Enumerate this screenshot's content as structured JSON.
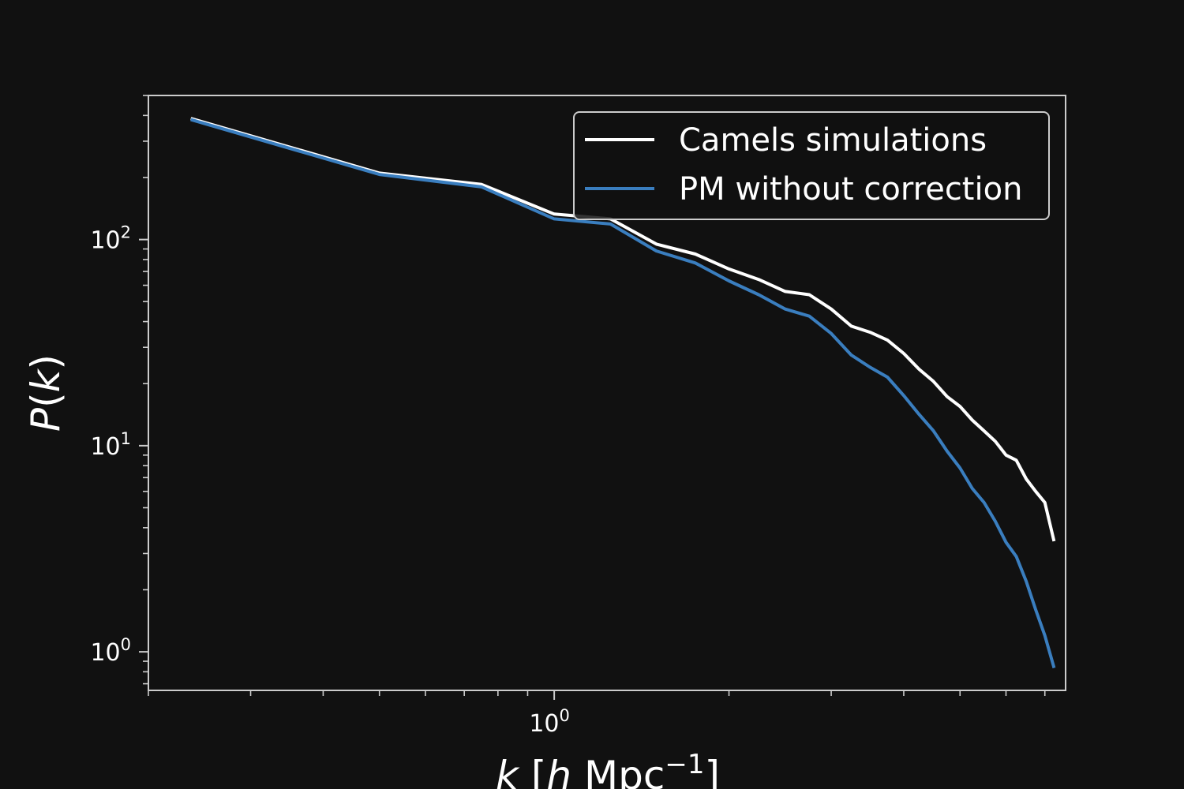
{
  "chart_data": {
    "type": "line",
    "xscale": "log",
    "yscale": "log",
    "xlim": [
      0.2,
      7.6
    ],
    "ylim": [
      0.65,
      500
    ],
    "x_major_ticks": [
      {
        "value": 1,
        "base": "10",
        "exp": "0"
      }
    ],
    "y_major_ticks": [
      {
        "value": 1,
        "base": "10",
        "exp": "0"
      },
      {
        "value": 10,
        "base": "10",
        "exp": "1"
      },
      {
        "value": 100,
        "base": "10",
        "exp": "2"
      }
    ],
    "xlabel": {
      "italic": "k",
      "open": " [",
      "italic2": "h",
      "text": " Mpc",
      "sup": "−1",
      "close": "]"
    },
    "ylabel": {
      "italic": "P",
      "open": "(",
      "italic2": "k",
      "close": ")"
    },
    "grid": false,
    "legend_position": "upper right",
    "series": [
      {
        "name": "Camels simulations",
        "color": "#ffffff",
        "x": [
          0.238,
          0.5,
          0.75,
          1.0,
          1.25,
          1.5,
          1.75,
          2.0,
          2.25,
          2.5,
          2.75,
          3.0,
          3.25,
          3.5,
          3.75,
          4.0,
          4.25,
          4.5,
          4.75,
          5.0,
          5.25,
          5.5,
          5.75,
          6.0,
          6.25,
          6.5,
          6.75,
          7.0,
          7.25
        ],
        "y": [
          385,
          210,
          185,
          133,
          126,
          95,
          85,
          72,
          64,
          56,
          54,
          46,
          38,
          35.5,
          32.5,
          28,
          23.5,
          20.5,
          17.3,
          15.5,
          13.3,
          11.8,
          10.5,
          9.0,
          8.5,
          6.9,
          6.0,
          5.3,
          3.5
        ]
      },
      {
        "name": "PM without correction",
        "color": "#3a7ebf",
        "x": [
          0.238,
          0.5,
          0.75,
          1.0,
          1.25,
          1.5,
          1.75,
          2.0,
          2.25,
          2.5,
          2.75,
          3.0,
          3.25,
          3.5,
          3.75,
          4.0,
          4.25,
          4.5,
          4.75,
          5.0,
          5.25,
          5.5,
          5.75,
          6.0,
          6.25,
          6.5,
          6.75,
          7.0,
          7.25
        ],
        "y": [
          380,
          207,
          180,
          126,
          119,
          88,
          77,
          63,
          54,
          46,
          42.5,
          35,
          27.5,
          24,
          21.5,
          17.5,
          14.2,
          11.8,
          9.4,
          7.8,
          6.2,
          5.3,
          4.3,
          3.4,
          2.9,
          2.2,
          1.6,
          1.2,
          0.85
        ]
      }
    ]
  }
}
